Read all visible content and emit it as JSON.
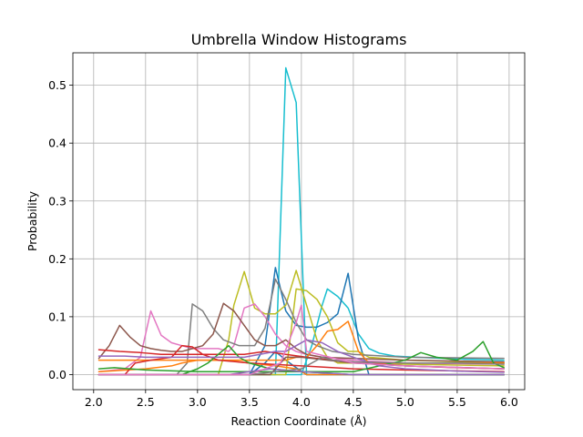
{
  "chart_data": {
    "type": "line",
    "title": "Umbrella Window Histograms",
    "xlabel": "Reaction Coordinate (Å)",
    "ylabel": "Probability",
    "xlim": [
      1.8,
      6.15
    ],
    "ylim": [
      -0.026,
      0.556
    ],
    "xticks": [
      2.0,
      2.5,
      3.0,
      3.5,
      4.0,
      4.5,
      5.0,
      5.5,
      6.0
    ],
    "xtick_labels": [
      "2.0",
      "2.5",
      "3.0",
      "3.5",
      "4.0",
      "4.5",
      "5.0",
      "5.5",
      "6.0"
    ],
    "yticks": [
      0.0,
      0.1,
      0.2,
      0.3,
      0.4,
      0.5
    ],
    "ytick_labels": [
      "0.0",
      "0.1",
      "0.2",
      "0.3",
      "0.4",
      "0.5"
    ],
    "grid": true,
    "legend": false,
    "series": [
      {
        "color": "#17becf",
        "x": [
          2.05,
          3.0,
          3.75,
          3.85,
          3.95,
          4.05,
          4.5,
          5.0,
          5.95
        ],
        "values": [
          0.0,
          0.0,
          0.0,
          0.53,
          0.47,
          0.0,
          0.0,
          0.0,
          0.0
        ]
      },
      {
        "color": "#17becf",
        "x": [
          2.05,
          3.0,
          3.5,
          4.0,
          4.1,
          4.2,
          4.25,
          4.35,
          4.45,
          4.55,
          4.65,
          4.75,
          4.9,
          5.1,
          5.5,
          5.95
        ],
        "values": [
          0.0,
          0.0,
          0.0,
          0.0,
          0.05,
          0.12,
          0.148,
          0.135,
          0.115,
          0.07,
          0.045,
          0.037,
          0.032,
          0.03,
          0.027,
          0.025
        ]
      },
      {
        "color": "#1f77b4",
        "x": [
          2.05,
          3.0,
          3.5,
          3.65,
          3.75,
          3.85,
          3.95,
          4.05,
          4.15,
          4.25,
          4.35,
          4.45,
          4.55,
          4.65,
          5.0,
          5.95
        ],
        "values": [
          0.0,
          0.0,
          0.0,
          0.05,
          0.185,
          0.11,
          0.085,
          0.082,
          0.082,
          0.09,
          0.105,
          0.175,
          0.06,
          0.0,
          0.0,
          0.0
        ]
      },
      {
        "color": "#1f77b4",
        "x": [
          2.05,
          3.0,
          3.5,
          3.65,
          3.75,
          3.85,
          3.95,
          4.05,
          4.5,
          5.0,
          5.95
        ],
        "values": [
          0.0,
          0.0,
          0.0,
          0.02,
          0.04,
          0.025,
          0.012,
          0.0,
          0.0,
          0.0,
          0.0
        ]
      },
      {
        "color": "#bcbd22",
        "x": [
          2.05,
          3.0,
          3.2,
          3.3,
          3.35,
          3.45,
          3.55,
          3.65,
          3.75,
          3.85,
          3.95,
          4.05,
          4.15,
          4.25,
          4.35,
          4.5,
          5.0,
          5.95
        ],
        "values": [
          0.0,
          0.0,
          0.0,
          0.06,
          0.12,
          0.178,
          0.115,
          0.105,
          0.105,
          0.12,
          0.18,
          0.12,
          0.06,
          0.03,
          0.02,
          0.02,
          0.018,
          0.015
        ]
      },
      {
        "color": "#bcbd22",
        "x": [
          2.05,
          3.0,
          3.5,
          3.85,
          3.95,
          4.05,
          4.15,
          4.25,
          4.35,
          4.45,
          4.55,
          4.65,
          5.0,
          5.95
        ],
        "values": [
          0.0,
          0.0,
          0.0,
          0.0,
          0.148,
          0.145,
          0.13,
          0.1,
          0.055,
          0.04,
          0.04,
          0.03,
          0.025,
          0.02
        ]
      },
      {
        "color": "#e377c2",
        "x": [
          2.05,
          2.3,
          2.45,
          2.55,
          2.65,
          2.75,
          2.85,
          2.95,
          3.05,
          3.2,
          3.3,
          3.35,
          3.45,
          3.55,
          3.65,
          3.75,
          3.85,
          3.95,
          4.05,
          4.2,
          4.5,
          5.0,
          5.95
        ],
        "values": [
          0.005,
          0.01,
          0.03,
          0.11,
          0.068,
          0.055,
          0.05,
          0.045,
          0.045,
          0.045,
          0.04,
          0.05,
          0.115,
          0.122,
          0.1,
          0.07,
          0.05,
          0.04,
          0.035,
          0.03,
          0.025,
          0.02,
          0.018
        ]
      },
      {
        "color": "#7f7f7f",
        "x": [
          2.05,
          2.8,
          2.9,
          2.95,
          3.05,
          3.15,
          3.25,
          3.4,
          3.55,
          3.65,
          3.75,
          3.85,
          3.95,
          4.05,
          4.15,
          4.3,
          4.5,
          5.0,
          5.95
        ],
        "values": [
          0.0,
          0.0,
          0.02,
          0.122,
          0.11,
          0.08,
          0.06,
          0.05,
          0.05,
          0.08,
          0.165,
          0.13,
          0.09,
          0.06,
          0.05,
          0.04,
          0.035,
          0.03,
          0.028
        ]
      },
      {
        "color": "#8c564b",
        "x": [
          2.05,
          2.15,
          2.25,
          2.35,
          2.45,
          2.55,
          2.65,
          2.75,
          2.85,
          2.95,
          3.05,
          3.15,
          3.25,
          3.35,
          3.45,
          3.55,
          3.65,
          3.75,
          3.85,
          3.95,
          4.05,
          4.2,
          4.5,
          5.0,
          5.95
        ],
        "values": [
          0.028,
          0.05,
          0.085,
          0.065,
          0.05,
          0.045,
          0.042,
          0.04,
          0.04,
          0.045,
          0.05,
          0.07,
          0.123,
          0.11,
          0.085,
          0.06,
          0.05,
          0.05,
          0.06,
          0.045,
          0.035,
          0.03,
          0.028,
          0.025,
          0.022
        ]
      },
      {
        "color": "#ff7f0e",
        "x": [
          2.05,
          3.0,
          3.5,
          3.85,
          3.95,
          4.05,
          4.15,
          4.25,
          4.35,
          4.45,
          4.55,
          4.65,
          5.0,
          5.95
        ],
        "values": [
          0.025,
          0.025,
          0.025,
          0.025,
          0.03,
          0.03,
          0.05,
          0.075,
          0.078,
          0.092,
          0.04,
          0.02,
          0.02,
          0.02
        ]
      },
      {
        "color": "#ff7f0e",
        "x": [
          2.05,
          2.5,
          2.75,
          2.85,
          3.0,
          3.25,
          3.5,
          3.75,
          3.95,
          4.05,
          4.5,
          5.0,
          5.95
        ],
        "values": [
          0.005,
          0.01,
          0.015,
          0.02,
          0.025,
          0.025,
          0.02,
          0.015,
          0.01,
          0.0,
          0.0,
          0.0,
          0.0
        ]
      },
      {
        "color": "#d62728",
        "x": [
          2.05,
          2.25,
          2.45,
          2.65,
          2.85,
          3.0,
          3.15,
          3.3,
          3.45,
          3.65,
          3.85,
          4.05,
          4.3,
          4.6,
          5.0,
          5.5,
          5.95
        ],
        "values": [
          0.043,
          0.04,
          0.038,
          0.035,
          0.035,
          0.035,
          0.035,
          0.035,
          0.035,
          0.04,
          0.035,
          0.03,
          0.025,
          0.02,
          0.015,
          0.012,
          0.01
        ]
      },
      {
        "color": "#d62728",
        "x": [
          2.05,
          2.3,
          2.4,
          2.55,
          2.75,
          2.85,
          2.95,
          3.05,
          3.2,
          3.5,
          4.0,
          4.5,
          5.0,
          5.95
        ],
        "values": [
          0.0,
          0.0,
          0.02,
          0.025,
          0.03,
          0.05,
          0.048,
          0.035,
          0.025,
          0.02,
          0.015,
          0.01,
          0.008,
          0.005
        ]
      },
      {
        "color": "#2ca02c",
        "x": [
          2.05,
          2.2,
          2.5,
          3.0,
          3.5,
          4.0,
          4.5,
          5.0,
          5.15,
          5.3,
          5.5,
          5.65,
          5.75,
          5.85,
          5.95
        ],
        "values": [
          0.01,
          0.012,
          0.008,
          0.005,
          0.005,
          0.005,
          0.005,
          0.025,
          0.038,
          0.03,
          0.025,
          0.04,
          0.057,
          0.02,
          0.012
        ]
      },
      {
        "color": "#2ca02c",
        "x": [
          2.05,
          2.5,
          2.85,
          3.0,
          3.1,
          3.2,
          3.3,
          3.4,
          3.5,
          3.7,
          4.0,
          4.5,
          5.0,
          5.95
        ],
        "values": [
          0.0,
          0.0,
          0.0,
          0.01,
          0.02,
          0.035,
          0.05,
          0.03,
          0.02,
          0.01,
          0.005,
          0.0,
          0.0,
          0.0
        ]
      },
      {
        "color": "#9467bd",
        "x": [
          2.05,
          2.3,
          2.5,
          2.8,
          3.0,
          3.2,
          3.45,
          3.6,
          3.75,
          3.85,
          3.95,
          4.05,
          4.2,
          4.35,
          4.5,
          4.75,
          5.0,
          5.5,
          5.95
        ],
        "values": [
          0.032,
          0.032,
          0.03,
          0.03,
          0.03,
          0.03,
          0.03,
          0.035,
          0.04,
          0.04,
          0.05,
          0.06,
          0.055,
          0.04,
          0.03,
          0.015,
          0.01,
          0.006,
          0.004
        ]
      },
      {
        "color": "#9467bd",
        "x": [
          2.05,
          2.5,
          3.0,
          3.3,
          3.5,
          3.7,
          4.0,
          4.5,
          5.0,
          5.95
        ],
        "values": [
          0.0,
          0.0,
          0.0,
          0.0,
          0.005,
          0.01,
          0.005,
          0.0,
          0.0,
          0.0
        ]
      },
      {
        "color": "#8c564b",
        "x": [
          2.05,
          3.0,
          3.5,
          3.7,
          3.85,
          4.0,
          4.5,
          5.0,
          5.95
        ],
        "values": [
          0.0,
          0.0,
          0.0,
          0.0,
          0.03,
          0.03,
          0.02,
          0.015,
          0.01
        ]
      },
      {
        "color": "#7f7f7f",
        "x": [
          2.05,
          3.0,
          3.5,
          4.0,
          4.2,
          4.3,
          4.5,
          5.0,
          5.5,
          5.95
        ],
        "values": [
          0.0,
          0.0,
          0.0,
          0.01,
          0.03,
          0.025,
          0.022,
          0.02,
          0.02,
          0.018
        ]
      },
      {
        "color": "#e377c2",
        "x": [
          2.05,
          3.0,
          3.5,
          3.8,
          3.95,
          4.0,
          4.05,
          4.5,
          5.0,
          5.95
        ],
        "values": [
          0.0,
          0.0,
          0.0,
          0.02,
          0.09,
          0.12,
          0.04,
          0.02,
          0.015,
          0.01
        ]
      }
    ]
  }
}
